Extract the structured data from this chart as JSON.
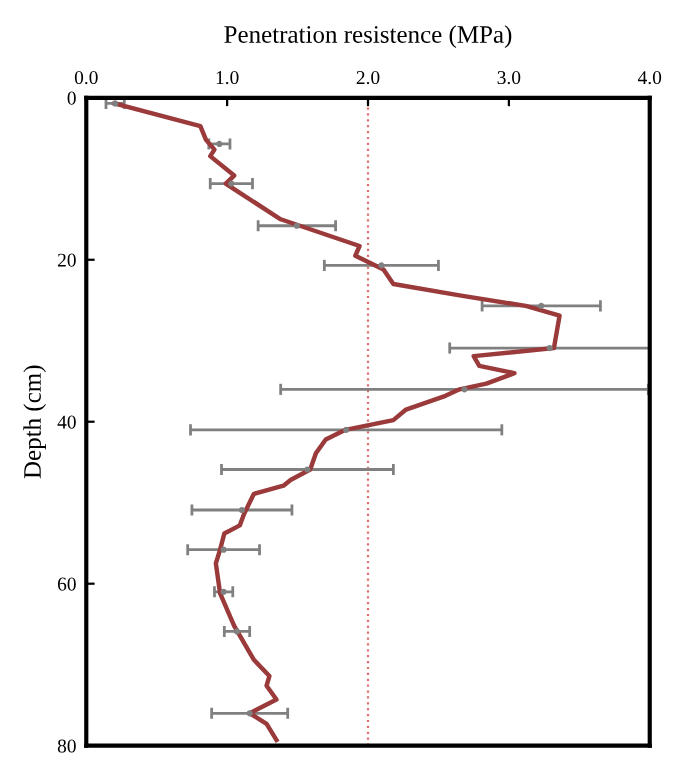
{
  "chart_data": {
    "type": "scatter",
    "xlabel": "Penetration resistence (MPa)",
    "ylabel": "Depth (cm)",
    "xlim": [
      0,
      4
    ],
    "xticks": [
      {
        "value": 0,
        "label": "0.0"
      },
      {
        "value": 1,
        "label": "1.0"
      },
      {
        "value": 2,
        "label": "2.0"
      },
      {
        "value": 3,
        "label": "3.0"
      },
      {
        "value": 4,
        "label": "4.0"
      }
    ],
    "ylim": [
      80,
      0
    ],
    "yticks": [
      0,
      20,
      40,
      60,
      80
    ],
    "grid": false,
    "ref_lines": [
      {
        "axis": "x",
        "value": 2.0,
        "color": "#e07070",
        "line_style": "dotted"
      }
    ],
    "series": [
      {
        "type": "line",
        "color": "#9b3a3a",
        "marker": "none",
        "line_style": "solid",
        "x": [
          0.2,
          0.81,
          0.85,
          0.91,
          0.88,
          1.05,
          0.99,
          1.06,
          1.38,
          1.94,
          1.91,
          2.11,
          2.18,
          2.65,
          3.12,
          3.36,
          3.33,
          3.32,
          2.75,
          2.79,
          3.04,
          2.84,
          2.65,
          2.55,
          2.27,
          2.18,
          1.84,
          1.7,
          1.63,
          1.59,
          1.45,
          1.4,
          1.19,
          1.12,
          1.09,
          0.98,
          0.95,
          0.92,
          0.95,
          1.05,
          1.19,
          1.3,
          1.28,
          1.35,
          1.16,
          1.28,
          1.35
        ],
        "values": [
          0.7,
          3.5,
          5.2,
          6.4,
          7.2,
          9.6,
          10.6,
          11.4,
          15,
          18.3,
          19.5,
          21.2,
          23,
          24.4,
          25.7,
          26.9,
          29.9,
          30.9,
          31.9,
          33.1,
          34,
          35.3,
          36,
          36.8,
          38.5,
          39.8,
          41,
          42.2,
          43.9,
          45.9,
          47.2,
          47.9,
          48.9,
          51.4,
          52.8,
          53.8,
          55.8,
          57.5,
          61.2,
          65.2,
          69.4,
          71.4,
          72.6,
          74.3,
          76,
          77.3,
          79.3
        ]
      },
      {
        "color": "#808080",
        "marker": "circle",
        "x": [
          0.205,
          0.945,
          1.03,
          1.495,
          2.095,
          3.23,
          3.29,
          2.685,
          1.845,
          1.57,
          1.105,
          0.975,
          0.975,
          1.07,
          1.16
        ],
        "values": [
          0.7,
          5.7,
          10.6,
          15.8,
          20.7,
          25.7,
          30.9,
          36,
          41,
          45.9,
          50.9,
          55.8,
          61,
          65.9,
          76
        ],
        "xerrors": [
          [
            0.14,
            0.27
          ],
          [
            0.87,
            1.02
          ],
          [
            0.88,
            1.18
          ],
          [
            1.22,
            1.77
          ],
          [
            1.69,
            2.5
          ],
          [
            2.81,
            3.65
          ],
          [
            2.58,
            4.0
          ],
          [
            1.38,
            3.99
          ],
          [
            0.74,
            2.95
          ],
          [
            0.96,
            2.18
          ],
          [
            0.75,
            1.46
          ],
          [
            0.72,
            1.23
          ],
          [
            0.91,
            1.04
          ],
          [
            0.98,
            1.16
          ],
          [
            0.89,
            1.43
          ]
        ]
      }
    ]
  }
}
